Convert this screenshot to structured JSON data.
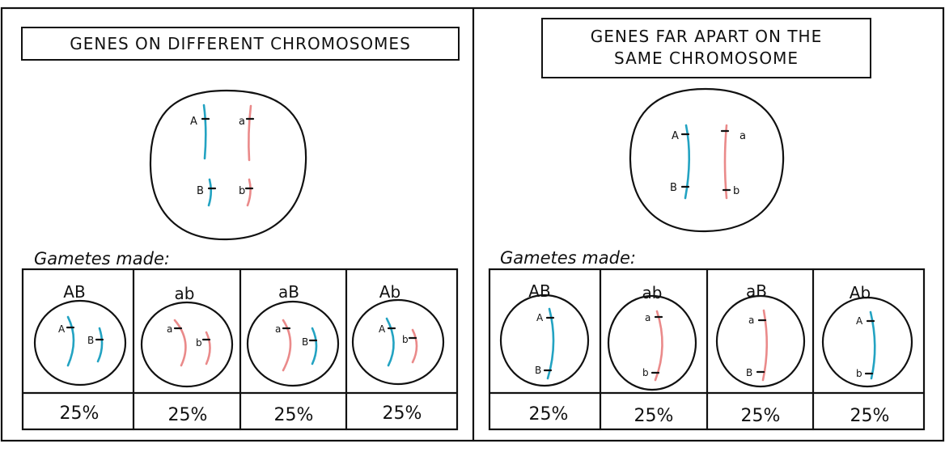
{
  "colors": {
    "chrom_a": "#23a3c2",
    "chrom_b": "#ea8a8a",
    "ink": "#111111"
  },
  "left_panel": {
    "title": "GENES ON DIFFERENT CHROMOSOMES",
    "cell_labels": {
      "A": "A",
      "a": "a",
      "B": "B",
      "b": "b"
    },
    "gametes_label": "Gametes made:",
    "gametes": [
      {
        "name": "AB",
        "labels": [
          "A",
          "B"
        ],
        "pct": "25%"
      },
      {
        "name": "ab",
        "labels": [
          "a",
          "b"
        ],
        "pct": "25%"
      },
      {
        "name": "aB",
        "labels": [
          "a",
          "B"
        ],
        "pct": "25%"
      },
      {
        "name": "Ab",
        "labels": [
          "A",
          "b"
        ],
        "pct": "25%"
      }
    ]
  },
  "right_panel": {
    "title_line1": "GENES FAR APART ON THE",
    "title_line2": "SAME CHROMOSOME",
    "cell_labels": {
      "A": "A",
      "a": "a",
      "B": "B",
      "b": "b"
    },
    "gametes_label": "Gametes made:",
    "gametes": [
      {
        "name": "AB",
        "labels": [
          "A",
          "B"
        ],
        "pct": "25%"
      },
      {
        "name": "ab",
        "labels": [
          "a",
          "b"
        ],
        "pct": "25%"
      },
      {
        "name": "aB",
        "labels": [
          "a",
          "B"
        ],
        "pct": "25%"
      },
      {
        "name": "Ab",
        "labels": [
          "A",
          "b"
        ],
        "pct": "25%"
      }
    ]
  }
}
